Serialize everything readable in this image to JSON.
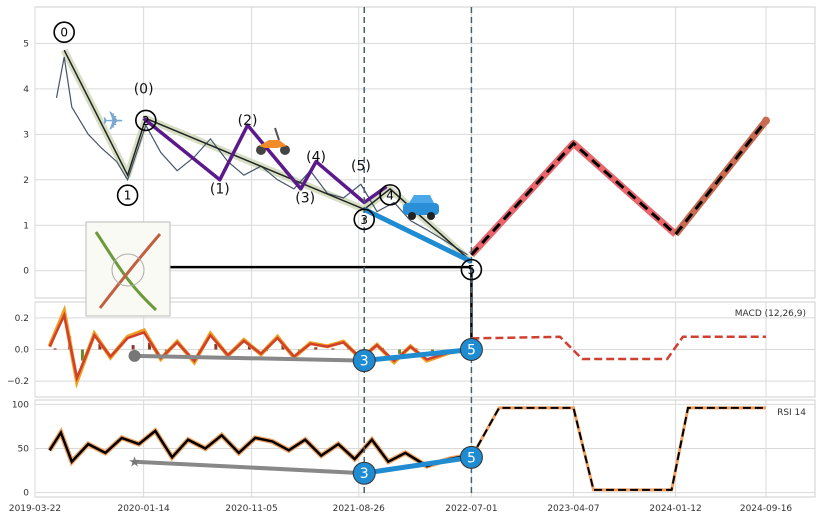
{
  "chart_data": [
    {
      "type": "line",
      "panel": "price",
      "y_ticks": [
        "0",
        "1",
        "2",
        "3",
        "4",
        "5"
      ],
      "ylim": [
        -0.6,
        5.8
      ],
      "x_ticks": [
        "2019-03-22",
        "2020-01-14",
        "2020-11-05",
        "2021-08-26",
        "2022-07-01",
        "2023-04-07",
        "2024-01-12",
        "2024-09-16"
      ],
      "grid": true,
      "price_series": {
        "x": [
          "2019-05-20",
          "2019-06-10",
          "2019-07-01",
          "2019-08-15",
          "2019-09-20",
          "2019-11-01",
          "2019-12-01",
          "2020-01-20",
          "2020-03-01",
          "2020-04-15",
          "2020-06-01",
          "2020-07-15",
          "2020-09-01",
          "2020-10-15",
          "2020-12-01",
          "2021-01-15",
          "2021-03-01",
          "2021-04-15",
          "2021-06-01",
          "2021-07-15",
          "2021-09-01",
          "2021-10-15",
          "2021-12-01",
          "2022-01-15",
          "2022-03-01",
          "2022-05-01",
          "2022-06-20"
        ],
        "values": [
          3.8,
          4.7,
          3.6,
          3.0,
          2.7,
          2.4,
          2.0,
          3.2,
          2.6,
          2.2,
          2.5,
          2.9,
          2.4,
          2.1,
          2.3,
          2.0,
          1.8,
          2.2,
          1.7,
          1.6,
          1.9,
          1.3,
          1.5,
          1.1,
          0.9,
          0.6,
          0.35
        ]
      },
      "wave_labels": {
        "primary": [
          {
            "label": "0",
            "x": "2019-06-10",
            "y": 4.85
          },
          {
            "label": "1",
            "x": "2019-12-01",
            "y": 2.1
          },
          {
            "label": "2",
            "x": "2020-01-20",
            "y": 3.35
          },
          {
            "label": "3",
            "x": "2021-09-10",
            "y": 1.35
          },
          {
            "label": "4",
            "x": "2021-11-20",
            "y": 1.8
          },
          {
            "label": "5",
            "x": "2022-07-01",
            "y": 0.2
          }
        ],
        "secondary": [
          {
            "label": "(0)",
            "x": "2020-01-14",
            "y": 3.9
          },
          {
            "label": "(1)",
            "x": "2020-08-10",
            "y": 1.7
          },
          {
            "label": "(2)",
            "x": "2020-10-25",
            "y": 3.2
          },
          {
            "label": "(3)",
            "x": "2021-04-01",
            "y": 1.5
          },
          {
            "label": "(4)",
            "x": "2021-05-01",
            "y": 2.4
          },
          {
            "label": "(5)",
            "x": "2021-09-01",
            "y": 2.2
          }
        ]
      },
      "secondary_wave_path": {
        "x": [
          "2020-01-14",
          "2020-08-10",
          "2020-10-25",
          "2021-03-20",
          "2021-05-01",
          "2021-09-10",
          "2021-11-10"
        ],
        "values": [
          3.35,
          2.0,
          3.2,
          1.8,
          2.4,
          1.5,
          1.85
        ]
      },
      "forecast": {
        "x": [
          "2022-07-01",
          "2023-04-07",
          "2024-01-12",
          "2024-09-16"
        ],
        "values": [
          0.35,
          2.8,
          0.8,
          3.3
        ]
      },
      "horizontal_line": {
        "x": [
          "2020-01-14",
          "2022-07-01"
        ],
        "value": 0.08
      },
      "vertical_markers": [
        "2021-09-10",
        "2022-07-01"
      ],
      "colors": {
        "price": "#44546a",
        "wave_primary": "#d2dbbd",
        "wave_secondary": "#5b1a8b",
        "wave_blue": "#1f8bd1",
        "forecast": "#e8666b",
        "forecast_dash": "#000000",
        "forecast_late": "#c86b50"
      },
      "icons": [
        "airplane-icon",
        "scooter-icon",
        "car-icon",
        "plant-thumbnail-icon"
      ]
    },
    {
      "type": "line",
      "panel": "macd",
      "label": "MACD (12,26,9)",
      "y_ticks": [
        "0.2",
        "0.0",
        "−0.2"
      ],
      "ylim": [
        -0.3,
        0.3
      ],
      "grid": true,
      "macd_series": {
        "x": [
          "2019-05-01",
          "2019-06-10",
          "2019-07-15",
          "2019-09-01",
          "2019-10-15",
          "2019-12-01",
          "2020-01-15",
          "2020-03-01",
          "2020-04-15",
          "2020-06-01",
          "2020-07-15",
          "2020-09-01",
          "2020-10-15",
          "2020-12-01",
          "2021-01-15",
          "2021-03-01",
          "2021-04-15",
          "2021-06-01",
          "2021-07-15",
          "2021-09-01",
          "2021-10-15",
          "2021-12-01",
          "2022-01-15",
          "2022-03-01",
          "2022-05-01",
          "2022-06-20"
        ],
        "values": [
          0.02,
          0.24,
          -0.2,
          0.1,
          -0.05,
          0.08,
          0.12,
          -0.06,
          0.05,
          -0.08,
          0.1,
          -0.04,
          0.06,
          -0.03,
          0.08,
          -0.05,
          0.04,
          0.02,
          0.05,
          -0.06,
          0.03,
          -0.08,
          0.02,
          -0.07,
          -0.02,
          0.0
        ]
      },
      "forecast": {
        "x": [
          "2022-07-01",
          "2023-03-01",
          "2023-05-01",
          "2023-12-20",
          "2024-02-01",
          "2024-09-16"
        ],
        "values": [
          0.07,
          0.08,
          -0.06,
          -0.06,
          0.08,
          0.08
        ]
      },
      "markers": [
        {
          "label": "3",
          "x": "2021-09-10",
          "y": -0.07
        },
        {
          "label": "5",
          "x": "2022-07-01",
          "y": 0.0
        }
      ],
      "trend_from": {
        "x": "2019-12-20",
        "y": -0.04
      }
    },
    {
      "type": "line",
      "panel": "rsi",
      "label": "RSI 14",
      "y_ticks": [
        "0",
        "50",
        "100"
      ],
      "ylim": [
        -5,
        105
      ],
      "grid": true,
      "rsi_series": {
        "x": [
          "2019-05-01",
          "2019-06-01",
          "2019-07-01",
          "2019-08-15",
          "2019-10-01",
          "2019-11-15",
          "2020-01-01",
          "2020-02-15",
          "2020-04-01",
          "2020-05-15",
          "2020-07-01",
          "2020-08-15",
          "2020-10-01",
          "2020-11-15",
          "2021-01-01",
          "2021-02-15",
          "2021-04-01",
          "2021-05-15",
          "2021-07-01",
          "2021-08-15",
          "2021-10-01",
          "2021-11-15",
          "2022-01-01",
          "2022-03-01",
          "2022-05-01",
          "2022-06-20"
        ],
        "values": [
          48,
          68,
          35,
          55,
          45,
          62,
          55,
          70,
          40,
          60,
          50,
          65,
          45,
          62,
          58,
          48,
          60,
          42,
          55,
          38,
          60,
          35,
          45,
          30,
          38,
          42
        ]
      },
      "forecast": {
        "x": [
          "2022-07-01",
          "2022-09-15",
          "2023-04-07",
          "2023-06-01",
          "2024-01-01",
          "2024-02-15",
          "2024-09-16"
        ],
        "values": [
          40,
          96,
          96,
          3,
          3,
          96,
          96
        ]
      },
      "markers": [
        {
          "label": "3",
          "x": "2021-09-10",
          "y": 22
        },
        {
          "label": "5",
          "x": "2022-07-01",
          "y": 40
        }
      ],
      "trend_from": {
        "x": "2019-12-20",
        "y": 35
      }
    }
  ]
}
